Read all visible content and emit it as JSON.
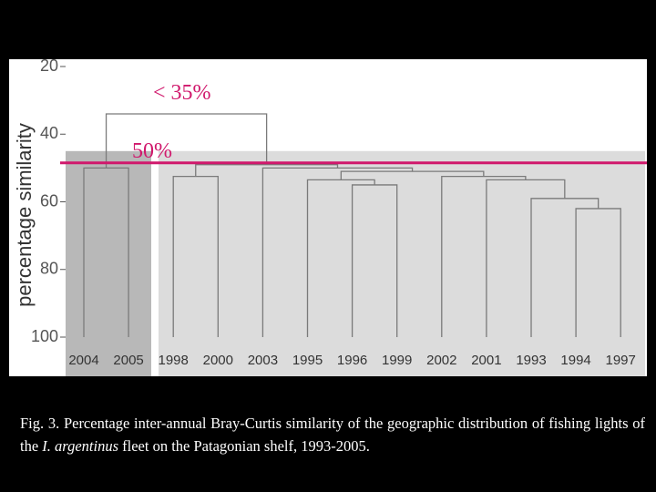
{
  "chart_data": {
    "type": "dendrogram",
    "y_label": "percentage similarity",
    "ylim": [
      20,
      100
    ],
    "yticks": [
      20,
      40,
      60,
      80,
      100
    ],
    "shade_from": 45,
    "shade_colors": [
      "#b8b8b8",
      "#dcdcdc"
    ],
    "link_color": "#7a7a7a",
    "threshold_line": {
      "value": 48.5,
      "color": "#d0186c"
    },
    "annotations": [
      "< 35%",
      "50%"
    ],
    "tree": {
      "height": 34,
      "children": [
        {
          "height": 50,
          "children": [
            {
              "label": "2004"
            },
            {
              "label": "2005"
            }
          ]
        },
        {
          "height": 49,
          "children": [
            {
              "height": 52.5,
              "children": [
                {
                  "label": "1998"
                },
                {
                  "label": "2000"
                }
              ]
            },
            {
              "height": 50,
              "children": [
                {
                  "label": "2003"
                },
                {
                  "height": 51,
                  "children": [
                    {
                      "height": 53.5,
                      "children": [
                        {
                          "label": "1995"
                        },
                        {
                          "height": 55,
                          "children": [
                            {
                              "label": "1996"
                            },
                            {
                              "label": "1999"
                            }
                          ]
                        }
                      ]
                    },
                    {
                      "height": 52.5,
                      "children": [
                        {
                          "label": "2002"
                        },
                        {
                          "height": 53.5,
                          "children": [
                            {
                              "label": "2001"
                            },
                            {
                              "height": 59,
                              "children": [
                                {
                                  "label": "1993"
                                },
                                {
                                  "height": 62,
                                  "children": [
                                    {
                                      "label": "1994"
                                    },
                                    {
                                      "label": "1997"
                                    }
                                  ]
                                }
                              ]
                            }
                          ]
                        }
                      ]
                    }
                  ]
                }
              ]
            }
          ]
        }
      ]
    }
  },
  "caption": [
    "Fig. 3.  Percentage inter-annual Bray-Curtis similarity of the geographic distribution of fishing lights of the ",
    "I. argentinus",
    " fleet on the Patagonian shelf, 1993-2005."
  ]
}
